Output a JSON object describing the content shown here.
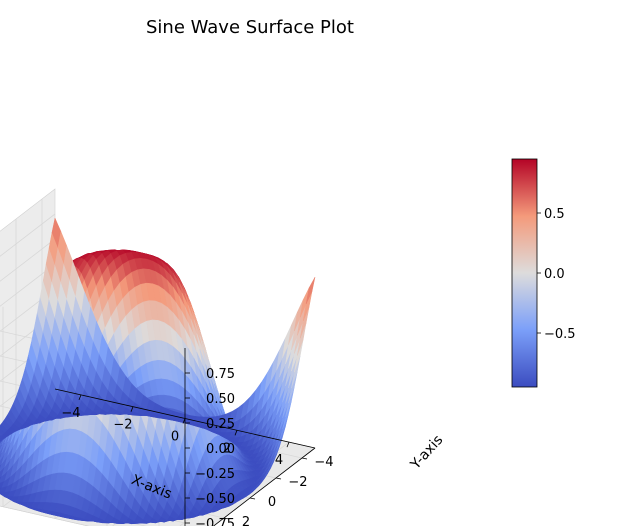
{
  "chart_data": {
    "type": "surface3d",
    "title": "Sine Wave Surface Plot",
    "function": "z = sin(sqrt(x^2 + y^2))",
    "xlabel": "X-axis",
    "ylabel": "Y-axis",
    "zlabel": "",
    "x_range": [
      -5,
      5
    ],
    "y_range": [
      -5,
      5
    ],
    "z_range": [
      -1,
      1
    ],
    "x_ticks": [
      "−4",
      "−2",
      "0",
      "2",
      "4"
    ],
    "y_ticks": [
      "−4",
      "−2",
      "0",
      "2",
      "4"
    ],
    "z_ticks": [
      "−0.75",
      "−0.50",
      "−0.25",
      "0.00",
      "0.25",
      "0.50",
      "0.75"
    ],
    "colormap": "coolwarm",
    "colorbar": {
      "ticks": [
        "−0.5",
        "0.0",
        "0.5"
      ],
      "range": [
        -1,
        1
      ]
    },
    "grid": true,
    "pane_color": "#f2f2f2",
    "grid_color": "#d8d8d8"
  }
}
